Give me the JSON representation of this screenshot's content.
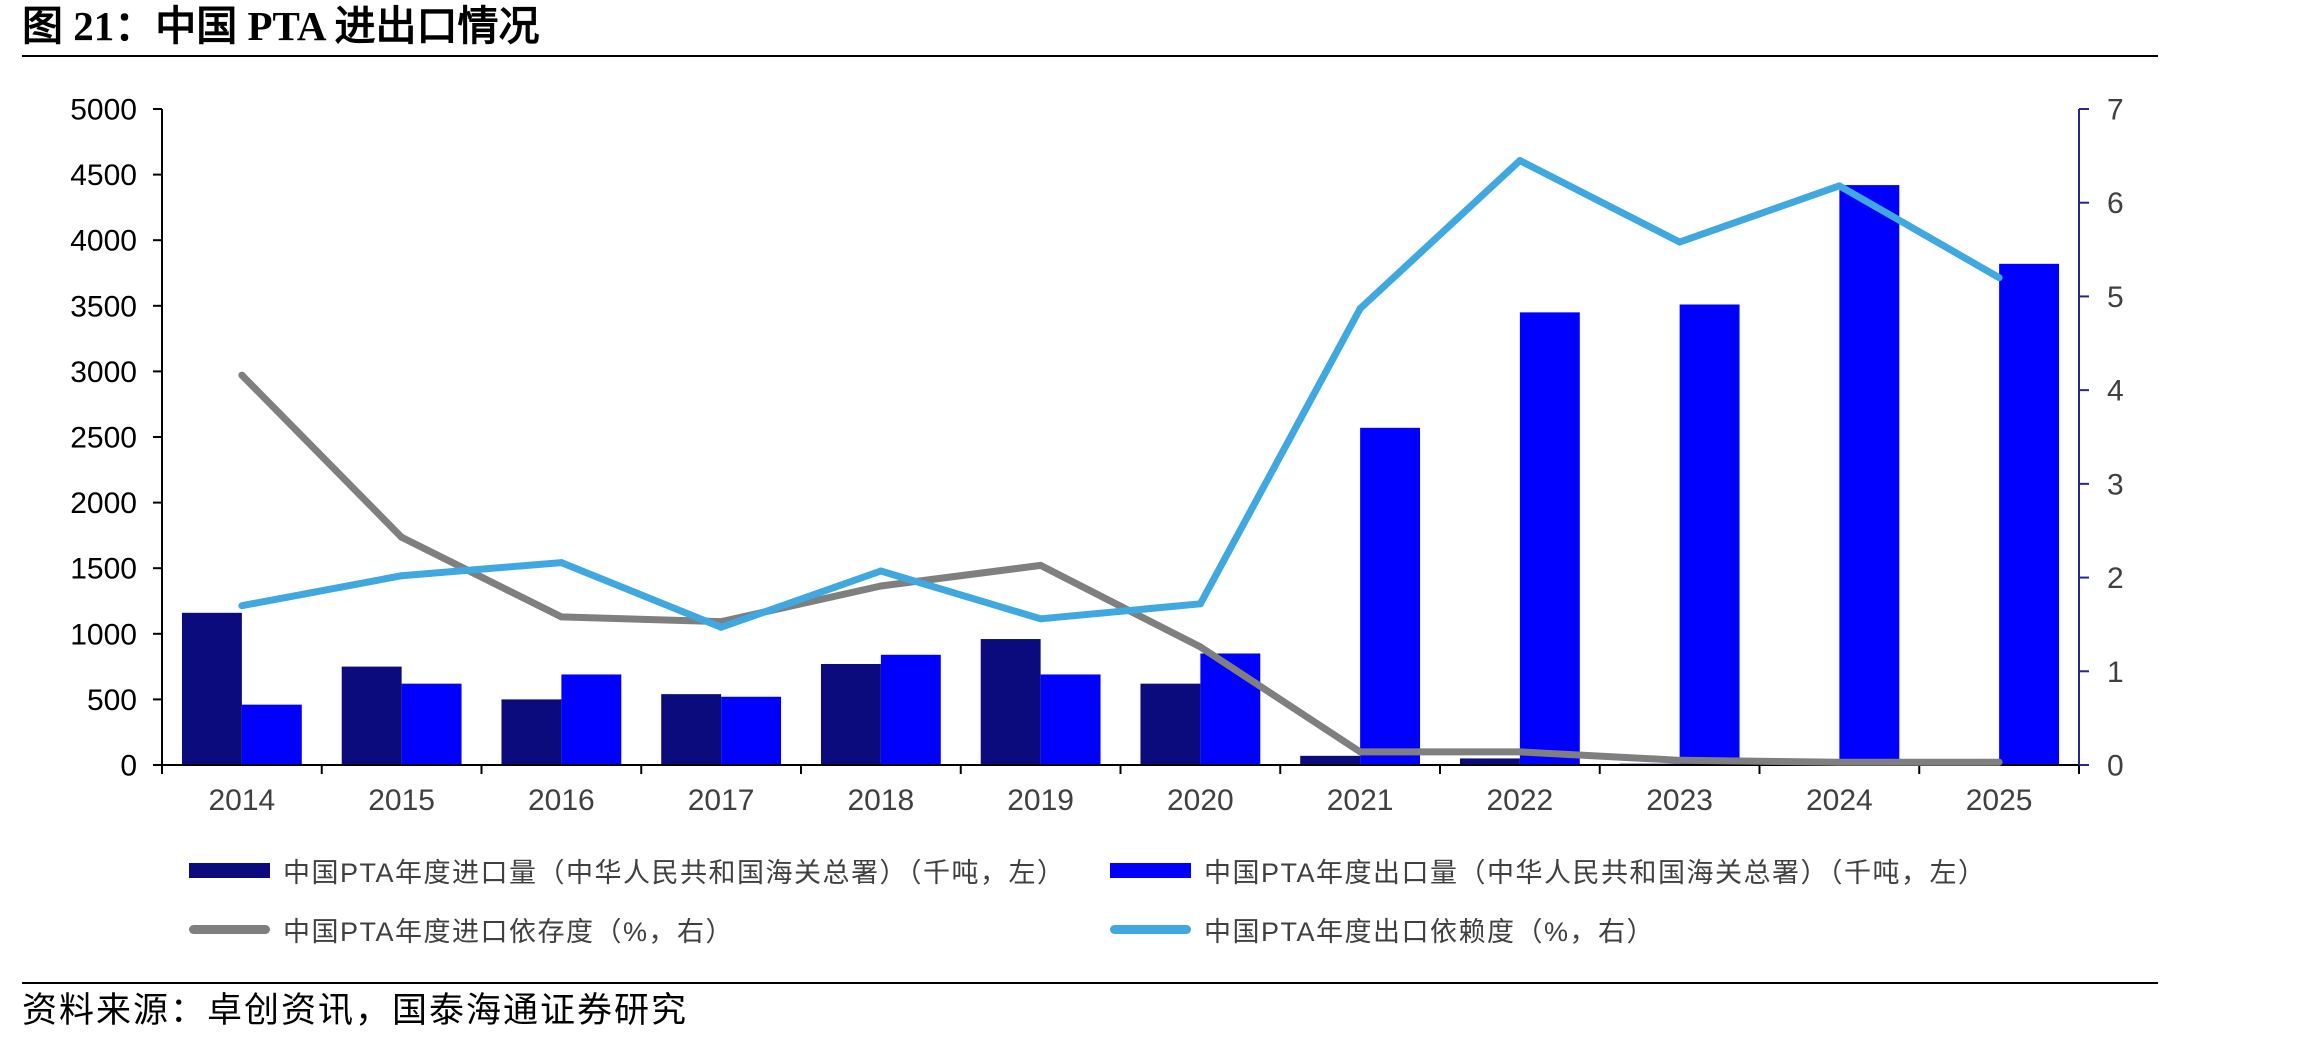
{
  "title": "图 21：中国 PTA 进出口情况",
  "source": "资料来源：卓创资讯，国泰海通证券研究",
  "chart_data": {
    "type": "bar",
    "categories": [
      "2014",
      "2015",
      "2016",
      "2017",
      "2018",
      "2019",
      "2020",
      "2021",
      "2022",
      "2023",
      "2024",
      "2025"
    ],
    "y_left": {
      "min": 0,
      "max": 5000,
      "ticks": [
        0,
        500,
        1000,
        1500,
        2000,
        2500,
        3000,
        3500,
        4000,
        4500,
        5000
      ]
    },
    "y_right": {
      "min": 0,
      "max": 7,
      "ticks": [
        0,
        1,
        2,
        3,
        4,
        5,
        6,
        7
      ],
      "axis_color": "#26268c"
    },
    "grid": false,
    "legend": "bottom",
    "series": [
      {
        "name": "中国PTA年度进口量（中华人民共和国海关总署）（千吨，左）",
        "type": "bar",
        "axis": "left",
        "color": "#0b0b7d",
        "values": [
          1160,
          750,
          500,
          540,
          770,
          960,
          620,
          70,
          50,
          10,
          5,
          5
        ]
      },
      {
        "name": "中国PTA年度出口量（中华人民共和国海关总署）（千吨，左）",
        "type": "bar",
        "axis": "left",
        "color": "#0000ff",
        "values": [
          460,
          620,
          690,
          520,
          840,
          690,
          850,
          2570,
          3450,
          3510,
          4420,
          3820
        ]
      },
      {
        "name": "中国PTA年度进口依存度（%，右）",
        "type": "line",
        "axis": "right",
        "color": "#7f7f7f",
        "values": [
          4.16,
          2.43,
          1.58,
          1.53,
          1.91,
          2.13,
          1.26,
          0.14,
          0.14,
          0.05,
          0.03,
          0.03
        ]
      },
      {
        "name": "中国PTA年度出口依赖度（%，右）",
        "type": "line",
        "axis": "right",
        "color": "#3fa8e0",
        "values": [
          1.7,
          2.02,
          2.16,
          1.47,
          2.07,
          1.56,
          1.72,
          4.87,
          6.45,
          5.58,
          6.18,
          5.2
        ]
      }
    ]
  }
}
